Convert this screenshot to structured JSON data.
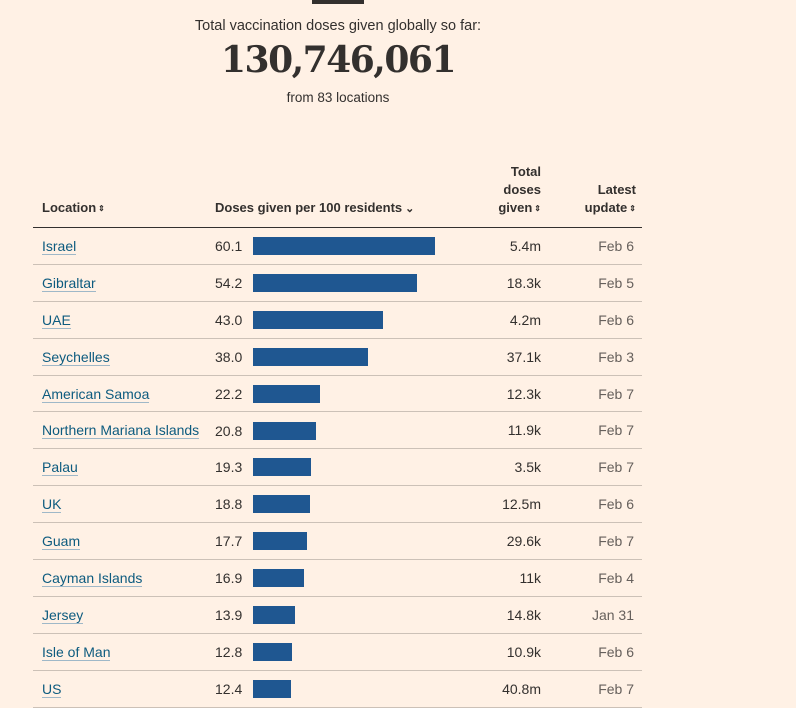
{
  "summary": {
    "label": "Total vaccination doses given globally so far:",
    "total": "130,746,061",
    "sub": "from 83 locations"
  },
  "table": {
    "headers": {
      "location": "Location",
      "rate": "Doses given per 100 residents",
      "total": [
        "Total",
        "doses",
        "given"
      ],
      "date": [
        "Latest",
        "update"
      ]
    },
    "sort_icons": {
      "location": "sort-both-icon",
      "rate": "chevron-down-icon",
      "total": "sort-both-icon",
      "date": "sort-both-icon"
    },
    "bar_color": "#1f5791"
  },
  "chart_data": {
    "type": "table",
    "series": [
      {
        "values": [
          60.1,
          54.2,
          43.0,
          38.0,
          22.2,
          20.8,
          19.3,
          18.8,
          17.7,
          16.9,
          13.9,
          12.8,
          12.4
        ]
      }
    ],
    "rows": [
      {
        "location": "Israel",
        "rate": "60.1",
        "value": 60.1,
        "total": "5.4m",
        "date": "Feb 6"
      },
      {
        "location": "Gibraltar",
        "rate": "54.2",
        "value": 54.2,
        "total": "18.3k",
        "date": "Feb 5"
      },
      {
        "location": "UAE",
        "rate": "43.0",
        "value": 43.0,
        "total": "4.2m",
        "date": "Feb 6"
      },
      {
        "location": "Seychelles",
        "rate": "38.0",
        "value": 38.0,
        "total": "37.1k",
        "date": "Feb 3"
      },
      {
        "location": "American Samoa",
        "rate": "22.2",
        "value": 22.2,
        "total": "12.3k",
        "date": "Feb 7"
      },
      {
        "location": "Northern Mariana Islands",
        "rate": "20.8",
        "value": 20.8,
        "total": "11.9k",
        "date": "Feb 7"
      },
      {
        "location": "Palau",
        "rate": "19.3",
        "value": 19.3,
        "total": "3.5k",
        "date": "Feb 7"
      },
      {
        "location": "UK",
        "rate": "18.8",
        "value": 18.8,
        "total": "12.5m",
        "date": "Feb 6"
      },
      {
        "location": "Guam",
        "rate": "17.7",
        "value": 17.7,
        "total": "29.6k",
        "date": "Feb 7"
      },
      {
        "location": "Cayman Islands",
        "rate": "16.9",
        "value": 16.9,
        "total": "11k",
        "date": "Feb 4"
      },
      {
        "location": "Jersey",
        "rate": "13.9",
        "value": 13.9,
        "total": "14.8k",
        "date": "Jan 31"
      },
      {
        "location": "Isle of Man",
        "rate": "12.8",
        "value": 12.8,
        "total": "10.9k",
        "date": "Feb 6"
      },
      {
        "location": "US",
        "rate": "12.4",
        "value": 12.4,
        "total": "40.8m",
        "date": "Feb 7"
      }
    ],
    "xlim": [
      0,
      60.1
    ]
  }
}
